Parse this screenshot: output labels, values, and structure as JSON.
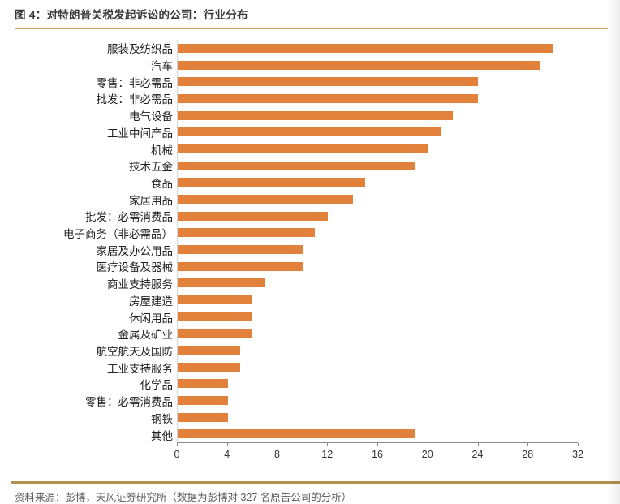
{
  "header": {
    "title": "图 4：对特朗普关税发起诉讼的公司：行业分布"
  },
  "footer": {
    "source": "资料来源：彭博，天风证券研究所（数据为彭博对 327 名原告公司的分析）"
  },
  "colors": {
    "bar": "#e2813c",
    "title_rule": "#c9a35e",
    "footer_rule": "#b2914f",
    "axis_line": "#8a8a8a",
    "category_axis_line": "#d8d8d8"
  },
  "chart_data": {
    "type": "bar",
    "orientation": "horizontal",
    "title": "对特朗普关税发起诉讼的公司：行业分布",
    "categories": [
      "服装及纺织品",
      "汽车",
      "零售：非必需品",
      "批发：非必需品",
      "电气设备",
      "工业中间产品",
      "机械",
      "技术五金",
      "食品",
      "家居用品",
      "批发：必需消费品",
      "电子商务（非必需品）",
      "家居及办公用品",
      "医疗设备及器械",
      "商业支持服务",
      "房屋建造",
      "休闲用品",
      "金属及矿业",
      "航空航天及国防",
      "工业支持服务",
      "化学品",
      "零售：必需消费品",
      "钢铁",
      "其他"
    ],
    "values": [
      30,
      29,
      24,
      24,
      22,
      21,
      20,
      19,
      15,
      14,
      12,
      11,
      10,
      10,
      7,
      6,
      6,
      6,
      5,
      5,
      4,
      4,
      4,
      19
    ],
    "xlabel": "",
    "ylabel": "",
    "xlim": [
      0,
      32
    ],
    "xticks": [
      0,
      4,
      8,
      12,
      16,
      20,
      24,
      28,
      32
    ],
    "grid": false,
    "legend": null
  }
}
